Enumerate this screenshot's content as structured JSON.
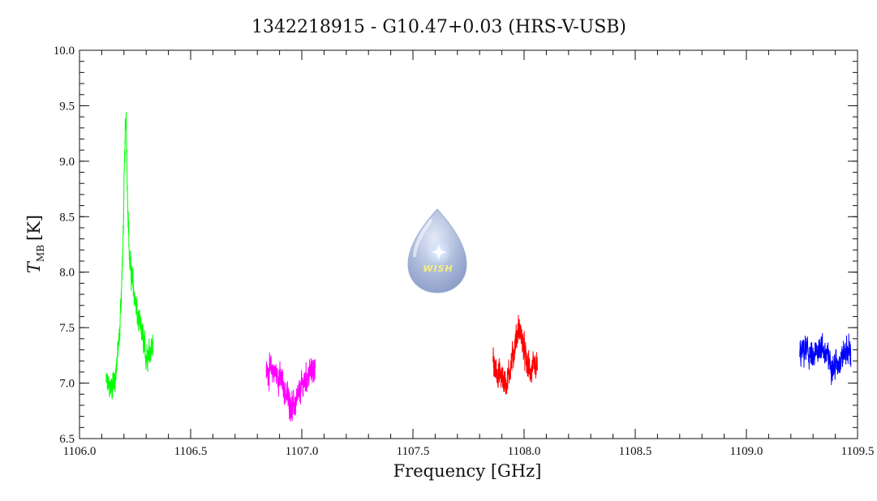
{
  "chart_data": {
    "type": "line",
    "title": "1342218915 - G10.47+0.03 (HRS-V-USB)",
    "xlabel": "Frequency [GHz]",
    "ylabel_main": "T",
    "ylabel_sub": "MB",
    "ylabel_unit": "[K]",
    "xlim": [
      1106.0,
      1109.5
    ],
    "ylim": [
      6.5,
      10.0
    ],
    "xticks": [
      1106.0,
      1106.5,
      1107.0,
      1107.5,
      1108.0,
      1108.5,
      1109.0,
      1109.5
    ],
    "xtick_labels": [
      "1106.0",
      "1106.5",
      "1107.0",
      "1107.5",
      "1108.0",
      "1108.5",
      "1109.0",
      "1109.5"
    ],
    "yticks": [
      6.5,
      7.0,
      7.5,
      8.0,
      8.5,
      9.0,
      9.5,
      10.0
    ],
    "ytick_labels": [
      "6.5",
      "7.0",
      "7.5",
      "8.0",
      "8.5",
      "9.0",
      "9.5",
      "10.0"
    ],
    "grid": false,
    "series": [
      {
        "color": "#00ff00",
        "x": [
          1106.12,
          1106.14,
          1106.16,
          1106.18,
          1106.195,
          1106.205,
          1106.21,
          1106.215,
          1106.225,
          1106.24,
          1106.26,
          1106.28,
          1106.3,
          1106.33
        ],
        "y": [
          7.0,
          6.95,
          7.05,
          7.4,
          8.2,
          9.2,
          9.45,
          8.8,
          8.1,
          7.9,
          7.6,
          7.45,
          7.25,
          7.35
        ]
      },
      {
        "color": "#ff00ff",
        "x": [
          1106.84,
          1106.87,
          1106.9,
          1106.92,
          1106.94,
          1106.96,
          1106.98,
          1107.0,
          1107.02,
          1107.04,
          1107.06
        ],
        "y": [
          7.1,
          7.12,
          7.05,
          6.95,
          6.85,
          6.78,
          6.85,
          6.97,
          7.05,
          7.1,
          7.15
        ]
      },
      {
        "color": "#ff0000",
        "x": [
          1107.86,
          1107.88,
          1107.9,
          1107.92,
          1107.94,
          1107.96,
          1107.975,
          1107.99,
          1108.01,
          1108.03,
          1108.06
        ],
        "y": [
          7.15,
          7.1,
          7.05,
          7.0,
          7.15,
          7.35,
          7.5,
          7.4,
          7.2,
          7.1,
          7.15
        ]
      },
      {
        "color": "#0000ff",
        "x": [
          1109.24,
          1109.27,
          1109.3,
          1109.33,
          1109.36,
          1109.39,
          1109.42,
          1109.45,
          1109.47
        ],
        "y": [
          7.25,
          7.3,
          7.2,
          7.35,
          7.25,
          7.15,
          7.2,
          7.3,
          7.28
        ]
      }
    ]
  },
  "logo": {
    "text": "WISH",
    "color_body": "#7f95c9",
    "color_glow": "#ffffff"
  }
}
